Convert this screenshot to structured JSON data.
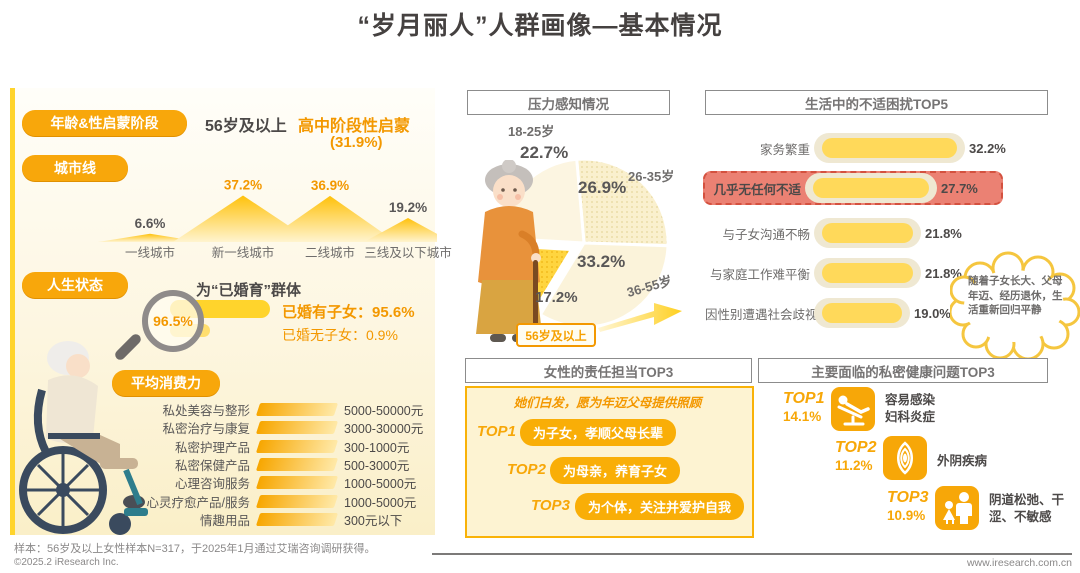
{
  "title": "“岁月丽人”人群画像—基本情况",
  "left_panel": {
    "age_badge": "年龄&性启蒙阶段",
    "age_value": "56岁及以上",
    "sex_education": "高中阶段性启蒙",
    "sex_education_pct": "(31.9%)",
    "city_badge": "城市线",
    "life_badge": "人生状态",
    "life_pct": "96.5%",
    "life_group": "为“已婚育”群体",
    "married_with_children": "已婚有子女：95.6%",
    "married_no_children": "已婚无子女：0.9%",
    "consumption_badge": "平均消费力"
  },
  "stress_panel": {
    "title": "压力感知情况",
    "highlight_box": "56岁及以上"
  },
  "discomfort_panel": {
    "cloud_note": "随着子女长大、父母年迈、经历退休，生活重新回归平静"
  },
  "responsibility_panel": {
    "title": "女性的责任担当TOP3",
    "intro": "她们白发，愿为年迈父母提供照顾",
    "items": [
      {
        "rank": "TOP1",
        "text": "为子女，孝顺父母长辈"
      },
      {
        "rank": "TOP2",
        "text": "为母亲，养育子女"
      },
      {
        "rank": "TOP3",
        "text": "为个体，关注并爱护自我"
      }
    ]
  },
  "health_panel": {
    "title": "主要面临的私密健康问题TOP3",
    "items": [
      {
        "rank": "TOP1",
        "pct": "14.1%",
        "icon": "exam-chair-icon",
        "text": "容易感染妇科炎症"
      },
      {
        "rank": "TOP2",
        "pct": "11.2%",
        "icon": "vulva-icon",
        "text": "外阴疾病"
      },
      {
        "rank": "TOP3",
        "pct": "10.9%",
        "icon": "family-icon",
        "text": "阴道松弛、干涩、不敏感"
      }
    ]
  },
  "footnote": "样本：56岁及以上女性样本N=317，于2025年1月通过艾瑞咨询调研获得。",
  "footer": {
    "copyright": "©2025.2 iResearch Inc.",
    "website": "www.iresearch.com.cn"
  },
  "colors": {
    "accent_orange": "#F7A708",
    "text_orange": "#F39800",
    "yellow": "#FFD42C",
    "highlight_red": "#EB8173",
    "gray_text": "#727171"
  },
  "chart_data": [
    {
      "id": "city_tier",
      "type": "area",
      "title": "城市线",
      "categories": [
        "一线城市",
        "新一线城市",
        "二线城市",
        "三线及以下城市"
      ],
      "values": [
        6.6,
        37.2,
        36.9,
        19.2
      ],
      "labels": [
        "6.6%",
        "37.2%",
        "36.9%",
        "19.2%"
      ],
      "unit": "%"
    },
    {
      "id": "stress_by_age",
      "type": "pie",
      "title": "压力感知情况",
      "slices": [
        {
          "label": "18-25岁",
          "value": 22.7,
          "pct": "22.7%"
        },
        {
          "label": "26-35岁",
          "value": 26.9,
          "pct": "26.9%"
        },
        {
          "label": "36-55岁",
          "value": 33.2,
          "pct": "33.2%"
        },
        {
          "label": "56岁及以上",
          "value": 17.2,
          "pct": "17.2%",
          "highlight": true
        }
      ],
      "unit": "%"
    },
    {
      "id": "discomfort_top5",
      "type": "bar",
      "title": "生活中的不适困扰TOP5",
      "categories": [
        "家务繁重",
        "几乎无任何不适",
        "与子女沟通不畅",
        "与家庭工作难平衡",
        "因性别遭遇社会歧视"
      ],
      "values": [
        32.2,
        27.7,
        21.8,
        21.8,
        19.0
      ],
      "labels": [
        "32.2%",
        "27.7%",
        "21.8%",
        "21.8%",
        "19.0%"
      ],
      "highlight_index": 1,
      "unit": "%"
    },
    {
      "id": "avg_consumption",
      "type": "table",
      "title": "平均消费力",
      "rows": [
        [
          "私处美容与整形",
          "5000-50000元"
        ],
        [
          "私密治疗与康复",
          "3000-30000元"
        ],
        [
          "私密护理产品",
          "300-1000元"
        ],
        [
          "私密保健产品",
          "500-3000元"
        ],
        [
          "心理咨询服务",
          "1000-5000元"
        ],
        [
          "心灵疗愈产品/服务",
          "1000-5000元"
        ],
        [
          "情趣用品",
          "300元以下"
        ]
      ]
    },
    {
      "id": "health_top3",
      "type": "bar",
      "title": "主要面临的私密健康问题TOP3",
      "categories": [
        "容易感染妇科炎症",
        "外阴疾病",
        "阴道松弛、干涩、不敏感"
      ],
      "values": [
        14.1,
        11.2,
        10.9
      ],
      "labels": [
        "14.1%",
        "11.2%",
        "10.9%"
      ],
      "unit": "%"
    }
  ]
}
